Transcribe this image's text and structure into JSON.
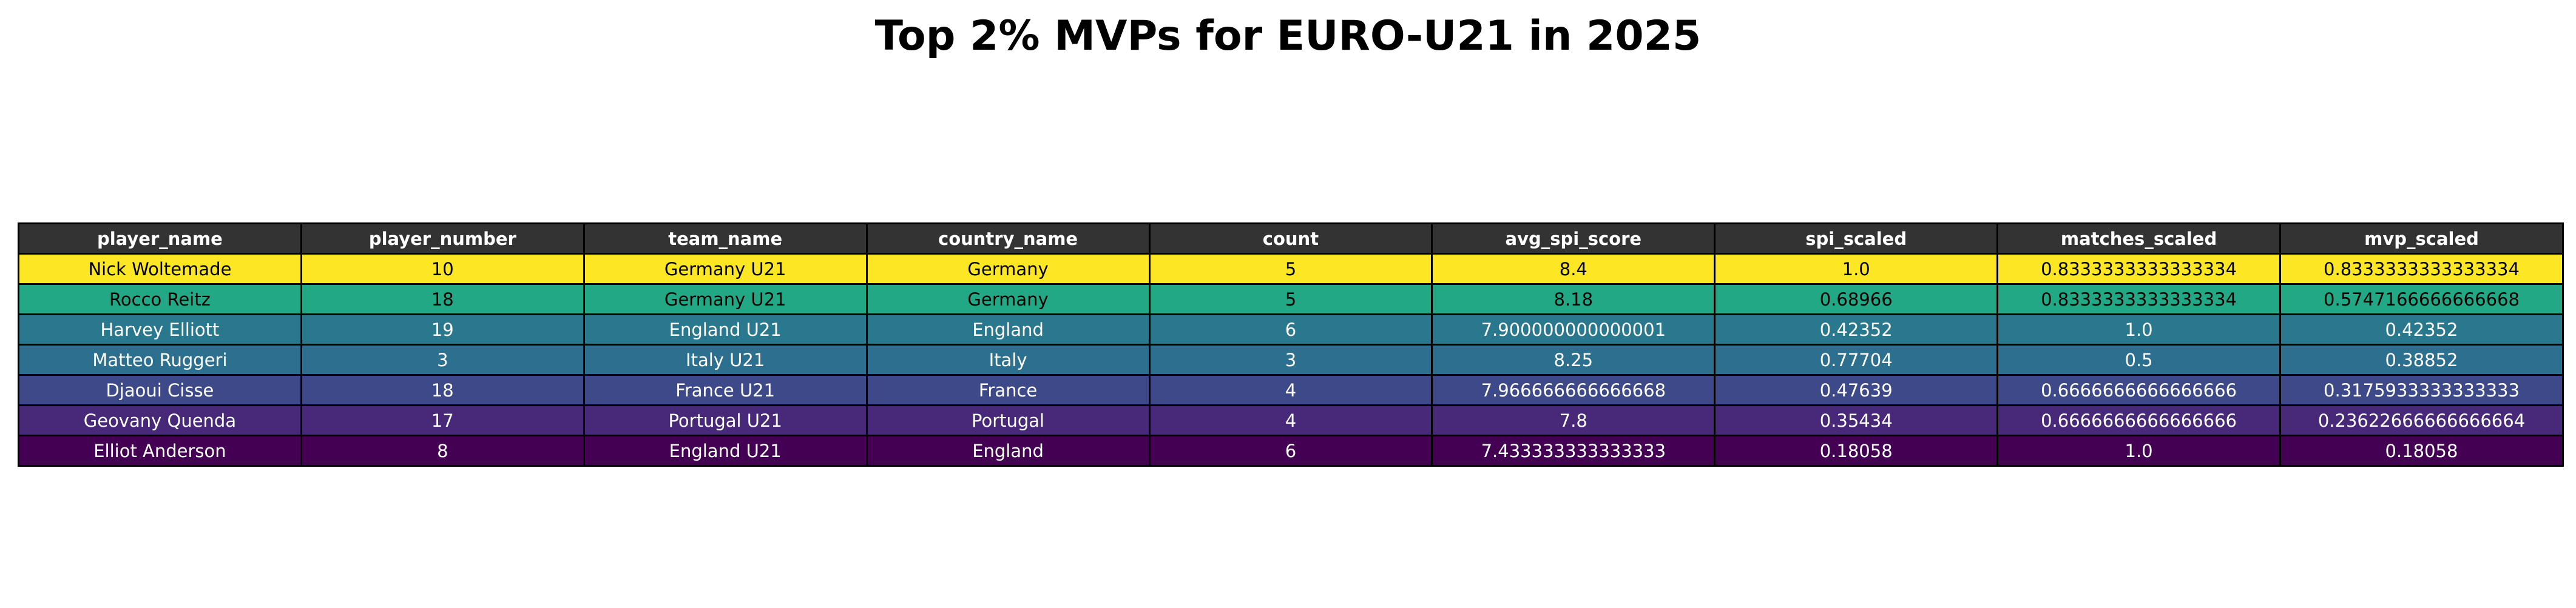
{
  "chart_data": {
    "type": "table",
    "title": "Top 2% MVPs for EURO-U21 in 2025",
    "header_color": "#333333",
    "columns": [
      "player_name",
      "player_number",
      "team_name",
      "country_name",
      "count",
      "avg_spi_score",
      "spi_scaled",
      "matches_scaled",
      "mvp_scaled"
    ],
    "rows": [
      {
        "color": "#fde725",
        "text_color": "#000000",
        "cells": [
          "Nick Woltemade",
          "10",
          "Germany U21",
          "Germany",
          "5",
          "8.4",
          "1.0",
          "0.8333333333333334",
          "0.8333333333333334"
        ]
      },
      {
        "color": "#22a884",
        "text_color": "#000000",
        "cells": [
          "Rocco Reitz",
          "18",
          "Germany U21",
          "Germany",
          "5",
          "8.18",
          "0.68966",
          "0.8333333333333334",
          "0.5747166666666668"
        ]
      },
      {
        "color": "#2a788e",
        "text_color": "#ffffff",
        "cells": [
          "Harvey Elliott",
          "19",
          "England U21",
          "England",
          "6",
          "7.900000000000001",
          "0.42352",
          "1.0",
          "0.42352"
        ]
      },
      {
        "color": "#2c6f8e",
        "text_color": "#ffffff",
        "cells": [
          "Matteo Ruggeri",
          "3",
          "Italy U21",
          "Italy",
          "3",
          "8.25",
          "0.77704",
          "0.5",
          "0.38852"
        ]
      },
      {
        "color": "#3e4989",
        "text_color": "#ffffff",
        "cells": [
          "Djaoui Cisse",
          "18",
          "France U21",
          "France",
          "4",
          "7.966666666666668",
          "0.47639",
          "0.6666666666666666",
          "0.3175933333333333"
        ]
      },
      {
        "color": "#482878",
        "text_color": "#ffffff",
        "cells": [
          "Geovany Quenda",
          "17",
          "Portugal U21",
          "Portugal",
          "4",
          "7.8",
          "0.35434",
          "0.6666666666666666",
          "0.23622666666666664"
        ]
      },
      {
        "color": "#440154",
        "text_color": "#ffffff",
        "cells": [
          "Elliot Anderson",
          "8",
          "England U21",
          "England",
          "6",
          "7.433333333333333",
          "0.18058",
          "1.0",
          "0.18058"
        ]
      }
    ]
  }
}
